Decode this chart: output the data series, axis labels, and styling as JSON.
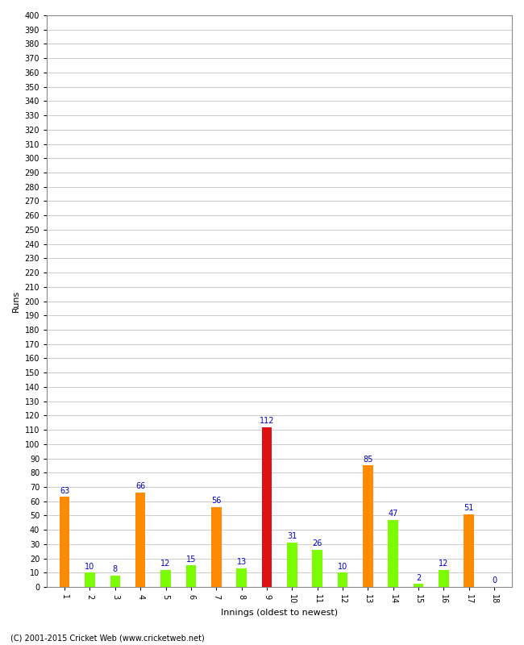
{
  "innings": [
    1,
    2,
    3,
    4,
    5,
    6,
    7,
    8,
    9,
    10,
    11,
    12,
    13,
    14,
    15,
    16,
    17,
    18
  ],
  "runs": [
    63,
    10,
    8,
    66,
    12,
    15,
    56,
    13,
    112,
    31,
    26,
    10,
    85,
    47,
    2,
    12,
    51,
    0
  ],
  "bar_colors": [
    "#ff8c00",
    "#7cfc00",
    "#7cfc00",
    "#ff8c00",
    "#7cfc00",
    "#7cfc00",
    "#ff8c00",
    "#7cfc00",
    "#dd1111",
    "#7cfc00",
    "#7cfc00",
    "#7cfc00",
    "#ff8c00",
    "#7cfc00",
    "#7cfc00",
    "#7cfc00",
    "#ff8c00",
    "#7cfc00"
  ],
  "xlabel": "Innings (oldest to newest)",
  "ylabel": "Runs",
  "ylim": [
    0,
    400
  ],
  "background_color": "#ffffff",
  "grid_color": "#cccccc",
  "label_color": "#0000cc",
  "label_fontsize": 7,
  "axis_fontsize": 7,
  "copyright": "(C) 2001-2015 Cricket Web (www.cricketweb.net)"
}
